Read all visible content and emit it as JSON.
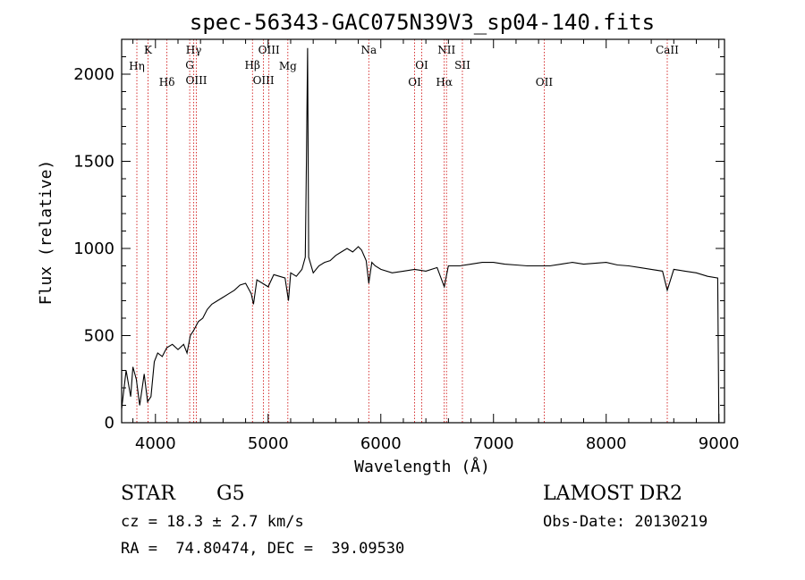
{
  "chart_data": {
    "type": "line",
    "title": "spec-56343-GAC075N39V3_sp04-140.fits",
    "xlabel": "Wavelength (Å)",
    "ylabel": "Flux (relative)",
    "xlim": [
      3700,
      9050
    ],
    "ylim": [
      0,
      2200
    ],
    "x_ticks": [
      4000,
      5000,
      6000,
      7000,
      8000,
      9000
    ],
    "y_ticks": [
      0,
      500,
      1000,
      1500,
      2000
    ],
    "x_tick_labels": [
      "4000",
      "5000",
      "6000",
      "7000",
      "8000",
      "9000"
    ],
    "y_tick_labels": [
      "0",
      "500",
      "1000",
      "1500",
      "2000"
    ],
    "grid": false,
    "series": [
      {
        "x": [
          3700,
          3740,
          3780,
          3800,
          3830,
          3860,
          3900,
          3930,
          3960,
          3990,
          4020,
          4060,
          4100,
          4150,
          4200,
          4250,
          4280,
          4310,
          4340,
          4380,
          4420,
          4460,
          4500,
          4550,
          4600,
          4650,
          4700,
          4750,
          4800,
          4850,
          4870,
          4900,
          4950,
          5000,
          5050,
          5100,
          5150,
          5180,
          5200,
          5250,
          5300,
          5330,
          5340,
          5350,
          5360,
          5400,
          5450,
          5500,
          5550,
          5600,
          5650,
          5700,
          5750,
          5800,
          5830,
          5870,
          5893,
          5920,
          5950,
          6000,
          6100,
          6200,
          6300,
          6400,
          6500,
          6563,
          6600,
          6700,
          6800,
          6900,
          7000,
          7100,
          7200,
          7300,
          7400,
          7500,
          7600,
          7700,
          7800,
          7900,
          8000,
          8100,
          8200,
          8300,
          8400,
          8500,
          8542,
          8600,
          8700,
          8800,
          8900,
          8990,
          9000
        ],
        "y": [
          80,
          300,
          150,
          320,
          250,
          100,
          280,
          120,
          150,
          350,
          400,
          380,
          430,
          450,
          420,
          450,
          400,
          500,
          530,
          580,
          600,
          650,
          680,
          700,
          720,
          740,
          760,
          790,
          800,
          740,
          680,
          820,
          800,
          780,
          850,
          840,
          830,
          700,
          860,
          840,
          880,
          950,
          1500,
          2150,
          950,
          860,
          900,
          920,
          930,
          960,
          980,
          1000,
          980,
          1010,
          990,
          930,
          800,
          920,
          900,
          880,
          860,
          870,
          880,
          870,
          890,
          780,
          900,
          900,
          910,
          920,
          920,
          910,
          905,
          900,
          900,
          900,
          910,
          920,
          910,
          915,
          920,
          905,
          900,
          890,
          880,
          870,
          760,
          880,
          870,
          860,
          840,
          830,
          0
        ]
      }
    ],
    "line_labels": [
      {
        "name": "Hη",
        "x": 3835
      },
      {
        "name": "K",
        "x": 3934
      },
      {
        "name": "Hδ",
        "x": 4102
      },
      {
        "name": "Hγ",
        "x": 4340
      },
      {
        "name": "G",
        "x": 4304
      },
      {
        "name": "OIII",
        "x": 4363
      },
      {
        "name": "Hβ",
        "x": 4861
      },
      {
        "name": "OIII",
        "x": 4959
      },
      {
        "name": "OIII",
        "x": 5007
      },
      {
        "name": "Mg",
        "x": 5175
      },
      {
        "name": "Na",
        "x": 5893
      },
      {
        "name": "OI",
        "x": 6300
      },
      {
        "name": "OI",
        "x": 6363
      },
      {
        "name": "NII",
        "x": 6583
      },
      {
        "name": "Hα",
        "x": 6563
      },
      {
        "name": "SII",
        "x": 6724
      },
      {
        "name": "OII",
        "x": 7450
      },
      {
        "name": "CaII",
        "x": 8542
      }
    ]
  },
  "info": {
    "object_class": "STAR",
    "subclass": "G5",
    "cz": "cz = 18.3 ± 2.7 km/s",
    "coords": "RA =  74.80474, DEC =  39.09530",
    "survey": "LAMOST DR2",
    "obs_date": "Obs-Date: 20130219"
  },
  "colors": {
    "axis": "#000000",
    "line_marker": "#cc0000",
    "spectrum": "#000000"
  }
}
